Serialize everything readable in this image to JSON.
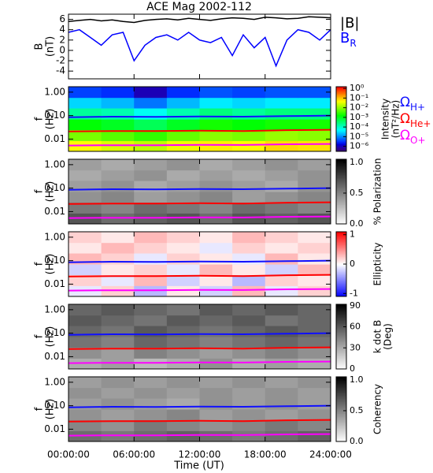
{
  "chart_data": {
    "title": "ACE Mag 2002-112",
    "xlabel": "Time (UT)",
    "xlim": [
      0,
      24
    ],
    "xticks": [
      {
        "value": 0,
        "label": "00:00:00"
      },
      {
        "value": 6,
        "label": "06:00:00"
      },
      {
        "value": 12,
        "label": "12:00:00"
      },
      {
        "value": 18,
        "label": "18:00:00"
      },
      {
        "value": 24,
        "label": "24:00:00"
      }
    ],
    "panels": [
      {
        "type": "line",
        "ylabel": [
          "B",
          "(nT)"
        ],
        "ylim": [
          -5.5,
          7
        ],
        "yticks": [
          -4,
          -2,
          0,
          2,
          4,
          6
        ],
        "x": [
          0,
          1,
          2,
          3,
          4,
          5,
          6,
          7,
          8,
          9,
          10,
          11,
          12,
          13,
          14,
          15,
          16,
          17,
          18,
          19,
          20,
          21,
          22,
          23,
          24
        ],
        "series": [
          {
            "name": "|B|",
            "color": "#000000",
            "values": [
              5.6,
              5.8,
              6.0,
              5.7,
              5.9,
              5.6,
              5.4,
              5.8,
              6.0,
              6.1,
              5.9,
              6.2,
              6.0,
              5.8,
              6.1,
              6.3,
              6.2,
              6.0,
              6.4,
              6.3,
              6.1,
              6.2,
              6.5,
              6.4,
              6.3
            ]
          },
          {
            "name": "BR",
            "color": "#0000ff",
            "values": [
              3.5,
              4.0,
              2.5,
              1.0,
              3.0,
              3.5,
              -2.0,
              1.0,
              2.5,
              3.0,
              2.0,
              3.5,
              2.0,
              1.5,
              2.5,
              -1.0,
              3.0,
              0.5,
              2.5,
              -3.0,
              2.0,
              4.0,
              3.5,
              2.0,
              4.0
            ]
          }
        ]
      },
      {
        "type": "heatmap",
        "ylabel": [
          "f",
          "(Hz)"
        ],
        "ylog": true,
        "ylim": [
          0.003,
          1.7
        ],
        "yticks": [
          0.01,
          {
            "value": 0.1,
            "label": "0.10"
          },
          {
            "value": 1,
            "label": "1.00"
          }
        ],
        "x_bins": [
          0,
          3,
          6,
          9,
          12,
          15,
          18,
          21,
          24
        ],
        "y_bins": [
          0.003,
          0.0086,
          0.025,
          0.071,
          0.21,
          0.59,
          1.7
        ],
        "z": [
          [
            0.05,
            0.03,
            0.02,
            0.04,
            0.06,
            0.05,
            0.08,
            0.07
          ],
          [
            0.008,
            0.005,
            0.003,
            0.006,
            0.01,
            0.008,
            0.012,
            0.01
          ],
          [
            0.0015,
            0.001,
            0.0005,
            0.001,
            0.002,
            0.0015,
            0.002,
            0.002
          ],
          [
            0.0002,
            0.00015,
            6e-05,
            0.00015,
            0.0003,
            0.0002,
            0.0003,
            0.0003
          ],
          [
            3e-05,
            2e-05,
            8e-06,
            2e-05,
            4e-05,
            3e-05,
            4e-05,
            4e-05
          ],
          [
            4e-06,
            3e-06,
            1e-06,
            3e-06,
            5e-06,
            4e-06,
            5e-06,
            5e-06
          ]
        ],
        "colormap": "rainbow",
        "zlog": true,
        "zlim": [
          3e-07,
          1.5
        ],
        "zticks": [
          {
            "value": 1,
            "label": "10⁰"
          },
          {
            "value": 0.1,
            "label": "10⁻¹"
          },
          {
            "value": 0.01,
            "label": "10⁻²"
          },
          {
            "value": 0.001,
            "label": "10⁻³"
          },
          {
            "value": 0.0001,
            "label": "10⁻⁴"
          },
          {
            "value": 1e-05,
            "label": "10⁻⁵"
          },
          {
            "value": 1e-06,
            "label": "10⁻⁶"
          }
        ],
        "zlabel": [
          "Intensity",
          "(nT²/Hz)"
        ],
        "x": [
          0,
          4,
          8,
          12,
          16,
          20,
          24
        ],
        "series": [
          {
            "name": "ΩH+",
            "color": "#1010ff",
            "values": [
              0.085,
              0.09,
              0.088,
              0.092,
              0.09,
              0.095,
              0.1
            ]
          },
          {
            "name": "ΩHe+",
            "color": "#ff0000",
            "values": [
              0.021,
              0.022,
              0.022,
              0.023,
              0.022,
              0.024,
              0.025
            ]
          },
          {
            "name": "ΩO+",
            "color": "#ff00ff",
            "values": [
              0.0053,
              0.0055,
              0.0055,
              0.0057,
              0.0056,
              0.006,
              0.0062
            ]
          }
        ]
      },
      {
        "type": "heatmap",
        "ylabel": [
          "f",
          "(Hz)"
        ],
        "ylog": true,
        "ylim": [
          0.003,
          1.7
        ],
        "yticks": [
          0.01,
          {
            "value": 0.1,
            "label": "0.10"
          },
          {
            "value": 1,
            "label": "1.00"
          }
        ],
        "x_bins": [
          0,
          3,
          6,
          9,
          12,
          15,
          18,
          21,
          24
        ],
        "y_bins": [
          0.003,
          0.0086,
          0.025,
          0.071,
          0.21,
          0.59,
          1.7
        ],
        "z": [
          [
            0.7,
            0.6,
            0.65,
            0.7,
            0.6,
            0.7,
            0.65,
            0.7
          ],
          [
            0.55,
            0.5,
            0.6,
            0.55,
            0.5,
            0.6,
            0.55,
            0.5
          ],
          [
            0.45,
            0.5,
            0.4,
            0.45,
            0.5,
            0.4,
            0.45,
            0.5
          ],
          [
            0.4,
            0.45,
            0.35,
            0.4,
            0.45,
            0.4,
            0.35,
            0.45
          ],
          [
            0.35,
            0.4,
            0.45,
            0.35,
            0.4,
            0.35,
            0.4,
            0.45
          ],
          [
            0.4,
            0.35,
            0.4,
            0.45,
            0.35,
            0.4,
            0.45,
            0.4
          ]
        ],
        "colormap": "gray",
        "zlim": [
          0,
          1.05
        ],
        "zticks": [
          {
            "value": 0,
            "label": "0.0"
          },
          0.5,
          {
            "value": 1,
            "label": "1.0"
          }
        ],
        "zlabel": [
          "% Polarization"
        ],
        "x": [
          0,
          4,
          8,
          12,
          16,
          20,
          24
        ],
        "series": [
          {
            "color": "#1010ff",
            "values": [
              0.085,
              0.09,
              0.088,
              0.092,
              0.09,
              0.095,
              0.1
            ]
          },
          {
            "color": "#ff0000",
            "values": [
              0.021,
              0.022,
              0.022,
              0.023,
              0.022,
              0.024,
              0.025
            ]
          },
          {
            "color": "#ff00ff",
            "values": [
              0.0053,
              0.0055,
              0.0055,
              0.0057,
              0.0056,
              0.006,
              0.0062
            ]
          }
        ]
      },
      {
        "type": "heatmap",
        "ylabel": [
          "f",
          "(Hz)"
        ],
        "ylog": true,
        "ylim": [
          0.003,
          1.7
        ],
        "yticks": [
          0.01,
          {
            "value": 0.1,
            "label": "0.10"
          },
          {
            "value": 1,
            "label": "1.00"
          }
        ],
        "x_bins": [
          0,
          3,
          6,
          9,
          12,
          15,
          18,
          21,
          24
        ],
        "y_bins": [
          0.003,
          0.0086,
          0.025,
          0.071,
          0.21,
          0.59,
          1.7
        ],
        "z": [
          [
            -0.1,
            0.2,
            -0.3,
            0.1,
            -0.2,
            0.3,
            -0.1,
            0.2
          ],
          [
            0.2,
            -0.1,
            0.3,
            -0.2,
            0.1,
            -0.3,
            0.2,
            0.1
          ],
          [
            -0.2,
            0.1,
            0.2,
            -0.1,
            0.3,
            0.1,
            -0.2,
            0.3
          ],
          [
            0.3,
            0.2,
            -0.1,
            0.2,
            0.1,
            -0.1,
            0.3,
            0.1
          ],
          [
            0.1,
            0.3,
            0.2,
            0.1,
            -0.1,
            0.2,
            0.1,
            0.2
          ],
          [
            0.2,
            0.1,
            0.3,
            0.2,
            0.1,
            0.3,
            0.2,
            0.1
          ]
        ],
        "colormap": "bwr",
        "zlim": [
          -1.1,
          1.1
        ],
        "zticks": [
          1,
          0,
          -1
        ],
        "zlabel": [
          "Ellipticity"
        ],
        "x": [
          0,
          4,
          8,
          12,
          16,
          20,
          24
        ],
        "series": [
          {
            "color": "#1010ff",
            "values": [
              0.085,
              0.09,
              0.088,
              0.092,
              0.09,
              0.095,
              0.1
            ]
          },
          {
            "color": "#ff0000",
            "values": [
              0.021,
              0.022,
              0.022,
              0.023,
              0.022,
              0.024,
              0.025
            ]
          },
          {
            "color": "#ff00ff",
            "values": [
              0.0053,
              0.0055,
              0.0055,
              0.0057,
              0.0056,
              0.006,
              0.0062
            ]
          }
        ]
      },
      {
        "type": "heatmap",
        "ylabel": [
          "f",
          "(Hz)"
        ],
        "ylog": true,
        "ylim": [
          0.003,
          1.7
        ],
        "yticks": [
          0.01,
          {
            "value": 0.1,
            "label": "0.10"
          },
          {
            "value": 1,
            "label": "1.00"
          }
        ],
        "x_bins": [
          0,
          3,
          6,
          9,
          12,
          15,
          18,
          21,
          24
        ],
        "y_bins": [
          0.003,
          0.0086,
          0.025,
          0.071,
          0.21,
          0.59,
          1.7
        ],
        "z": [
          [
            30,
            35,
            25,
            30,
            40,
            30,
            35,
            30
          ],
          [
            40,
            35,
            45,
            40,
            35,
            40,
            45,
            40
          ],
          [
            50,
            45,
            55,
            50,
            45,
            50,
            55,
            50
          ],
          [
            55,
            50,
            60,
            55,
            50,
            55,
            60,
            55
          ],
          [
            60,
            55,
            50,
            60,
            55,
            60,
            50,
            55
          ],
          [
            55,
            60,
            55,
            50,
            60,
            55,
            60,
            55
          ]
        ],
        "colormap": "gray",
        "zlim": [
          0,
          92
        ],
        "zticks": [
          0,
          30,
          60,
          90
        ],
        "zlabel": [
          "k dot B",
          "(Deg)"
        ],
        "x": [
          0,
          4,
          8,
          12,
          16,
          20,
          24
        ],
        "series": [
          {
            "color": "#1010ff",
            "values": [
              0.085,
              0.09,
              0.088,
              0.092,
              0.09,
              0.095,
              0.1
            ]
          },
          {
            "color": "#ff0000",
            "values": [
              0.021,
              0.022,
              0.022,
              0.023,
              0.022,
              0.024,
              0.025
            ]
          },
          {
            "color": "#ff00ff",
            "values": [
              0.0053,
              0.0055,
              0.0055,
              0.0057,
              0.0056,
              0.006,
              0.0062
            ]
          }
        ]
      },
      {
        "type": "heatmap",
        "ylabel": [
          "f",
          "(Hz)"
        ],
        "ylog": true,
        "ylim": [
          0.003,
          1.7
        ],
        "yticks": [
          0.01,
          {
            "value": 0.1,
            "label": "0.10"
          },
          {
            "value": 1,
            "label": "1.00"
          }
        ],
        "x_bins": [
          0,
          3,
          6,
          9,
          12,
          15,
          18,
          21,
          24
        ],
        "y_bins": [
          0.003,
          0.0086,
          0.025,
          0.071,
          0.21,
          0.59,
          1.7
        ],
        "z": [
          [
            0.6,
            0.55,
            0.6,
            0.65,
            0.6,
            0.55,
            0.6,
            0.65
          ],
          [
            0.5,
            0.45,
            0.55,
            0.5,
            0.45,
            0.5,
            0.55,
            0.5
          ],
          [
            0.45,
            0.4,
            0.45,
            0.5,
            0.4,
            0.45,
            0.4,
            0.45
          ],
          [
            0.4,
            0.45,
            0.4,
            0.35,
            0.45,
            0.4,
            0.45,
            0.4
          ],
          [
            0.45,
            0.4,
            0.45,
            0.4,
            0.45,
            0.4,
            0.45,
            0.4
          ],
          [
            0.4,
            0.45,
            0.4,
            0.45,
            0.4,
            0.45,
            0.4,
            0.45
          ]
        ],
        "colormap": "gray",
        "zlim": [
          0,
          1.05
        ],
        "zticks": [
          {
            "value": 0,
            "label": "0.0"
          },
          0.5,
          {
            "value": 1,
            "label": "1.0"
          }
        ],
        "zlabel": [
          "Coherency"
        ],
        "x": [
          0,
          4,
          8,
          12,
          16,
          20,
          24
        ],
        "series": [
          {
            "color": "#1010ff",
            "values": [
              0.085,
              0.09,
              0.088,
              0.092,
              0.09,
              0.095,
              0.1
            ]
          },
          {
            "color": "#ff0000",
            "values": [
              0.021,
              0.022,
              0.022,
              0.023,
              0.022,
              0.024,
              0.025
            ]
          },
          {
            "color": "#ff00ff",
            "values": [
              0.0053,
              0.0055,
              0.0055,
              0.0057,
              0.0056,
              0.006,
              0.0062
            ]
          }
        ]
      }
    ]
  }
}
